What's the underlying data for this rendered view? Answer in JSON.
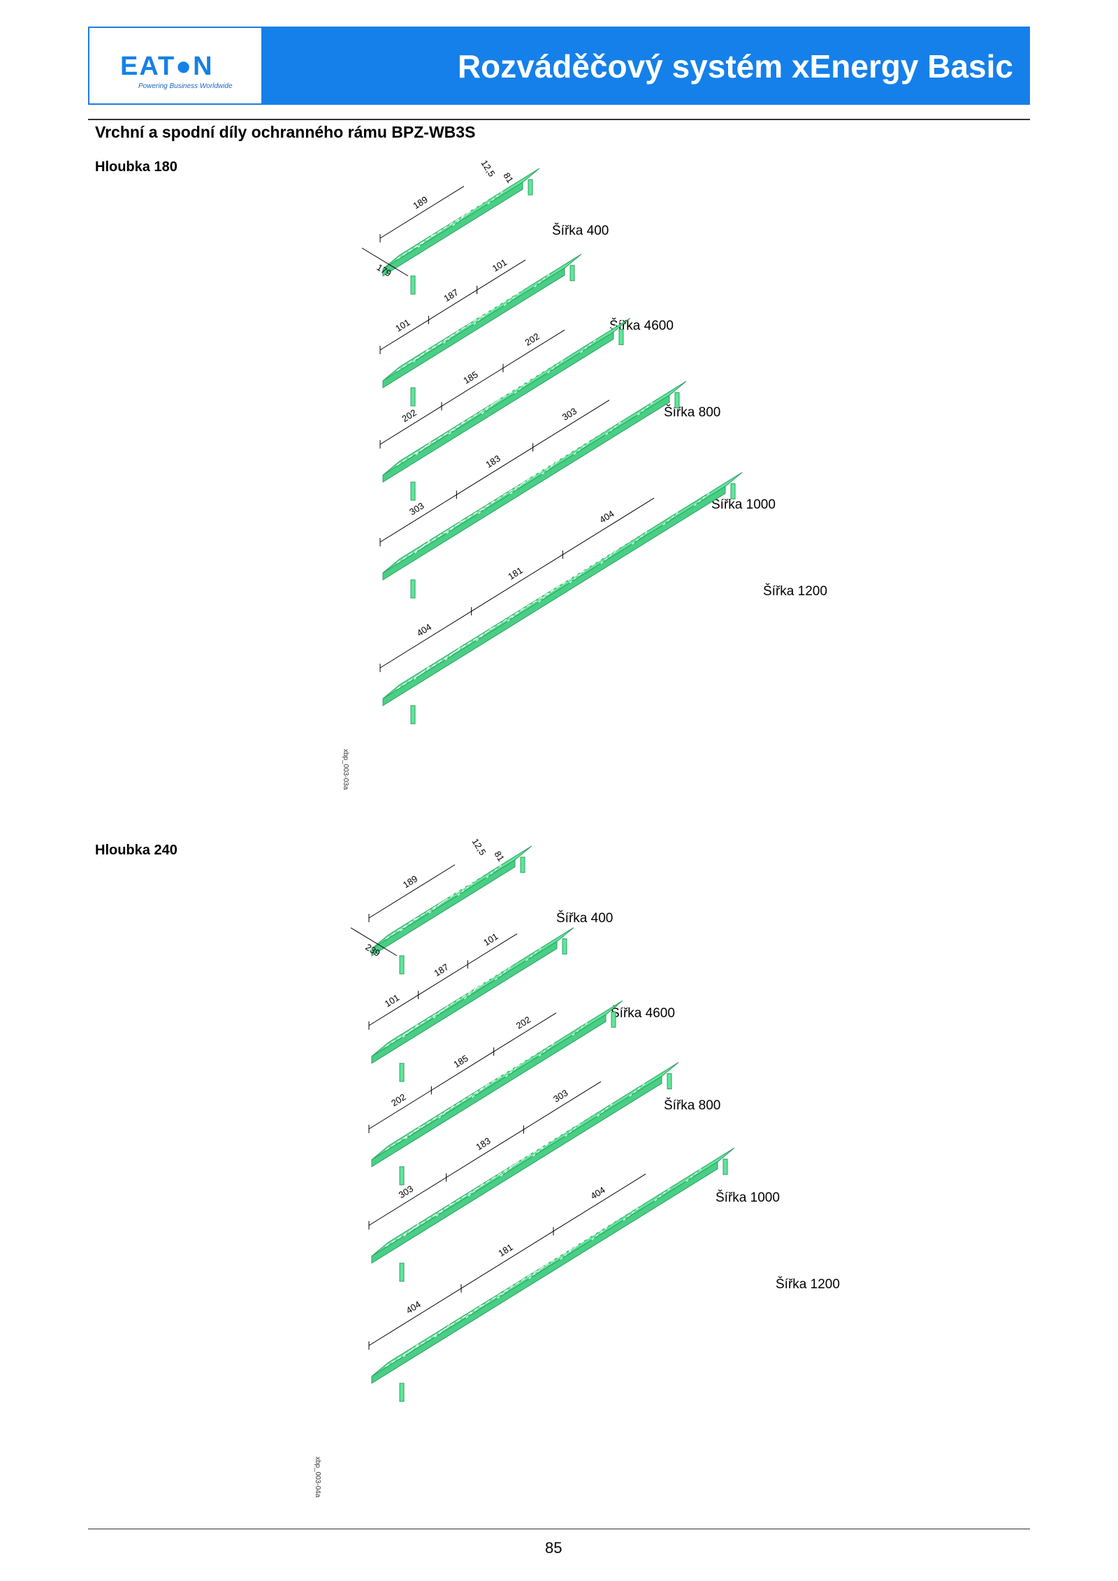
{
  "header": {
    "logo_text": "EAT●N",
    "logo_tagline": "Powering Business Worldwide",
    "title": "Rozváděčový systém xEnergy Basic"
  },
  "section_title": "Vrchní a spodní díly ochranného rámu BPZ-WB3S",
  "groups": [
    {
      "depth_label": "Hloubka 180",
      "figure_code": "xbp_003-03a",
      "parts": [
        {
          "width_label": "Šířka 400",
          "dims": [
            "189",
            "12,5",
            "81",
            "179"
          ]
        },
        {
          "width_label": "Šířka 4600",
          "dims": [
            "101",
            "187",
            "101"
          ]
        },
        {
          "width_label": "Šířka 800",
          "dims": [
            "202",
            "185",
            "202"
          ]
        },
        {
          "width_label": "Šířka 1000",
          "dims": [
            "303",
            "183",
            "303"
          ]
        },
        {
          "width_label": "Šířka 1200",
          "dims": [
            "404",
            "181",
            "404"
          ]
        }
      ]
    },
    {
      "depth_label": "Hloubka 240",
      "figure_code": "xbp_003-04a",
      "parts": [
        {
          "width_label": "Šířka 400",
          "dims": [
            "189",
            "12,5",
            "81",
            "239"
          ]
        },
        {
          "width_label": "Šířka 4600",
          "dims": [
            "101",
            "187",
            "101"
          ]
        },
        {
          "width_label": "Šířka 800",
          "dims": [
            "202",
            "185",
            "202"
          ]
        },
        {
          "width_label": "Šířka 1000",
          "dims": [
            "303",
            "183",
            "303"
          ]
        },
        {
          "width_label": "Šířka 1200",
          "dims": [
            "404",
            "181",
            "404"
          ]
        }
      ]
    }
  ],
  "page_number": "85",
  "colors": {
    "brand_blue": "#1580ea",
    "part_green": "#5fe69a"
  }
}
